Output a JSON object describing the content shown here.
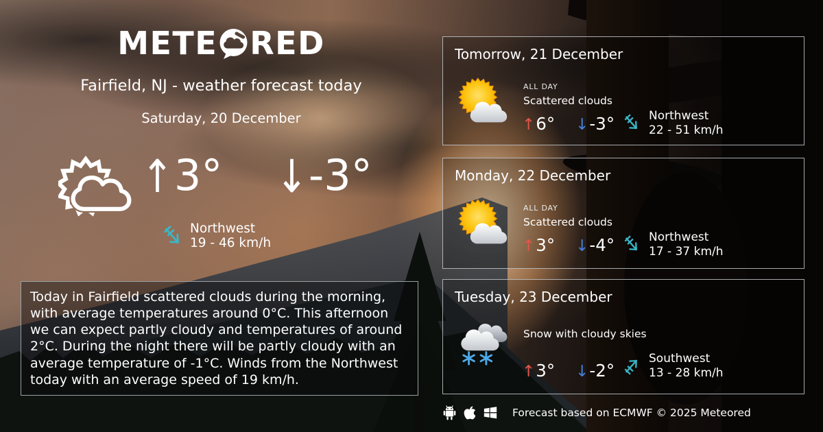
{
  "logo": {
    "part1": "METE",
    "part2": "RED"
  },
  "page": {
    "title": "Fairfield, NJ - weather forecast today",
    "date": "Saturday, 20 December"
  },
  "glyphs": {
    "up": "↑",
    "down": "↓"
  },
  "today": {
    "icon": "scattered-clouds",
    "high": "3°",
    "low": "-3°",
    "wind_direction": "Northwest",
    "wind_speed": "19 - 46 km/h",
    "summary": "Today in Fairfield scattered clouds during the morning, with average temperatures around 0°C. This afternoon we can expect partly cloudy and temperatures of around 2°C. During the night there will be partly cloudy with an average temperature of -1°C. Winds from the Northwest today with an average speed of 19 km/h."
  },
  "forecast": [
    {
      "day": "Tomorrow, 21 December",
      "period": "ALL DAY",
      "condition": "Scattered clouds",
      "icon": "sun-cloud",
      "high": "6°",
      "low": "-3°",
      "wind_direction": "Northwest",
      "wind_speed": "22 - 51 km/h",
      "wind_arrow": "se"
    },
    {
      "day": "Monday, 22 December",
      "period": "ALL DAY",
      "condition": "Scattered clouds",
      "icon": "sun-cloud",
      "high": "3°",
      "low": "-4°",
      "wind_direction": "Northwest",
      "wind_speed": "17 - 37 km/h",
      "wind_arrow": "se"
    },
    {
      "day": "Tuesday, 23 December",
      "period": "",
      "condition": "Snow with cloudy skies",
      "icon": "snow-cloud",
      "high": "3°",
      "low": "-2°",
      "wind_direction": "Southwest",
      "wind_speed": "13 - 28 km/h",
      "wind_arrow": "ne"
    }
  ],
  "footer": {
    "platform_icons": [
      "android-icon",
      "apple-icon",
      "windows-icon"
    ],
    "attribution": "Forecast based on ECMWF © 2025 Meteored"
  },
  "colors": {
    "wind_cyan": "#3ab7c8",
    "temp_up_red": "#e2574c",
    "temp_down_blue": "#477fd9",
    "sun_yellow": "#fcc40f",
    "snowflake_blue": "#4da9e8",
    "card_border": "#c3c7cb"
  }
}
